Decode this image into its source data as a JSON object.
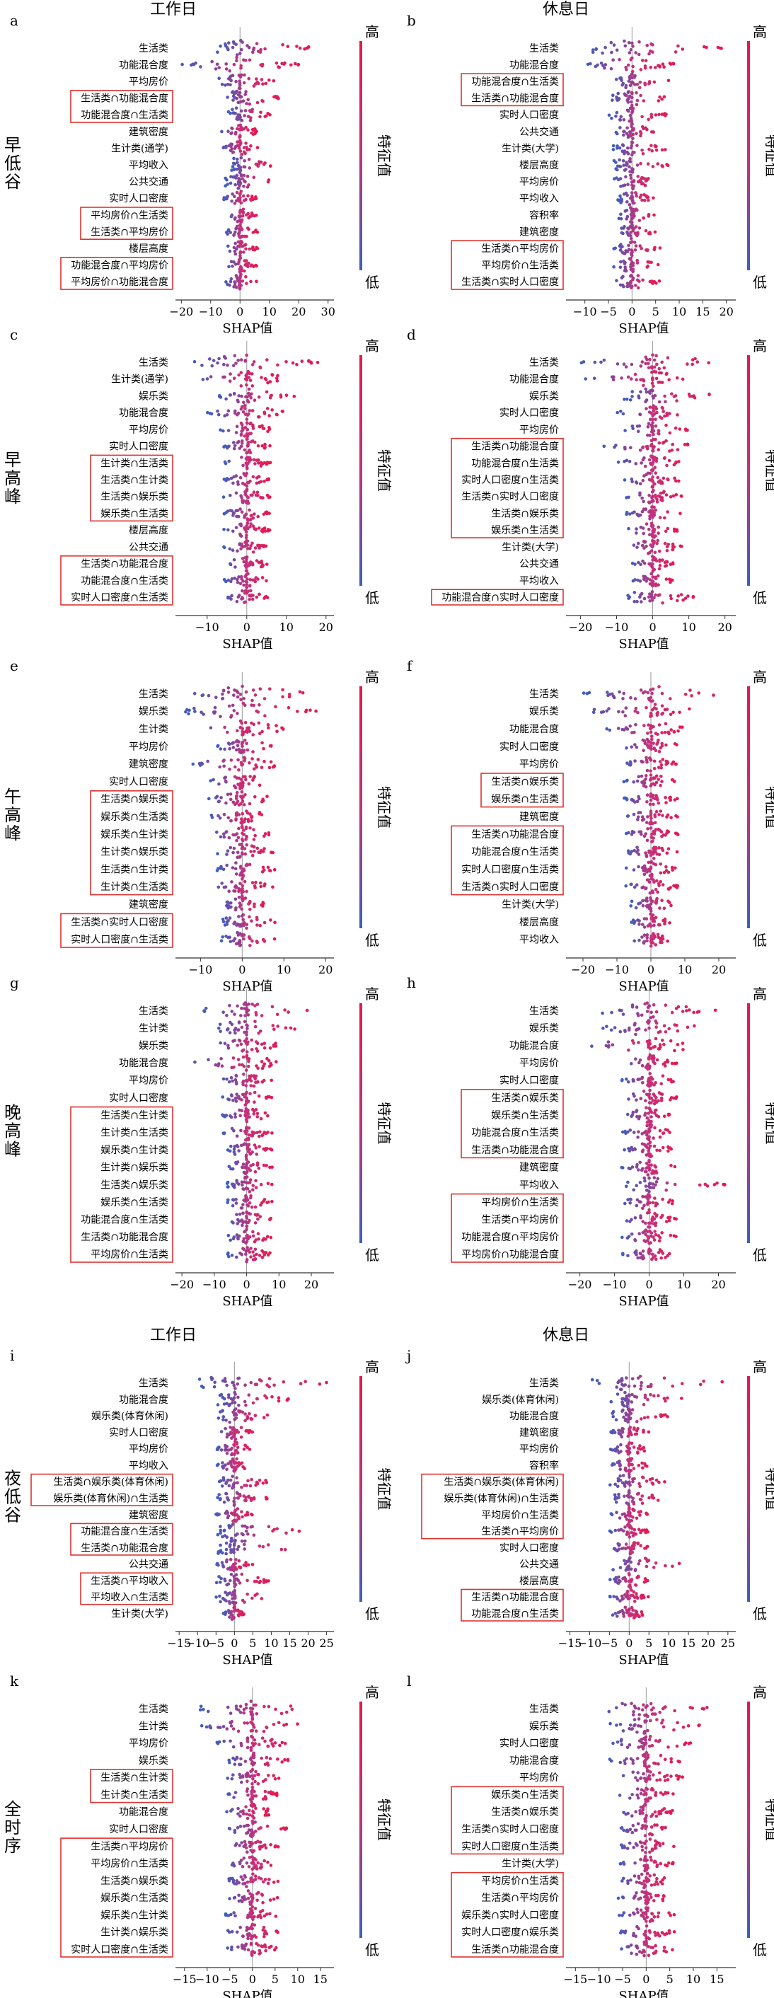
{
  "figure": {
    "headers": [
      "工作日",
      "休息日"
    ],
    "periods": [
      "早低谷",
      "早高峰",
      "午高峰",
      "晚高峰",
      "夜低谷",
      "全时序"
    ],
    "colorbar": {
      "high": "高",
      "low": "低",
      "label": "特征值",
      "colors": [
        "#3b5fc0",
        "#c6307a",
        "#e8174f"
      ]
    },
    "xlabel": "SHAP值"
  },
  "chart_data": [
    {
      "type": "scatter",
      "panel": "a",
      "period": "早低谷",
      "day": "工作日",
      "xlabel": "SHAP值",
      "xlim": [
        -22,
        32
      ],
      "xticks": [
        -20,
        -10,
        0,
        10,
        20,
        30
      ],
      "features": [
        "生活类",
        "功能混合度",
        "平均房价",
        "生活类∩功能混合度",
        "功能混合度∩生活类",
        "建筑密度",
        "生计类(通学)",
        "平均收入",
        "公共交通",
        "实时人口密度",
        "平均房价∩生活类",
        "生活类∩平均房价",
        "楼层高度",
        "功能混合度∩平均房价",
        "平均房价∩功能混合度"
      ],
      "ranges": [
        [
          -8,
          25
        ],
        [
          -20,
          20
        ],
        [
          -8,
          12
        ],
        [
          -6,
          14
        ],
        [
          -4,
          12
        ],
        [
          -7,
          6
        ],
        [
          -7,
          6
        ],
        [
          -3,
          12
        ],
        [
          -5,
          12
        ],
        [
          -6,
          6
        ],
        [
          -5,
          6
        ],
        [
          -5,
          6
        ],
        [
          -5,
          6
        ],
        [
          -5,
          6
        ],
        [
          -5,
          6
        ]
      ],
      "groups": [
        [
          3,
          4
        ],
        [
          10,
          11
        ],
        [
          13,
          14
        ]
      ]
    },
    {
      "type": "scatter",
      "panel": "b",
      "period": "早低谷",
      "day": "休息日",
      "xlabel": "SHAP值",
      "xlim": [
        -14,
        22
      ],
      "xticks": [
        -10,
        -5,
        0,
        5,
        10,
        15,
        20
      ],
      "features": [
        "生活类",
        "功能混合度",
        "功能混合度∩生活类",
        "生活类∩功能混合度",
        "实时人口密度",
        "公共交通",
        "生计类(大学)",
        "楼层高度",
        "平均房价",
        "平均收入",
        "容积率",
        "建筑密度",
        "生活类∩平均房价",
        "平均房价∩生活类",
        "生活类∩实时人口密度"
      ],
      "ranges": [
        [
          -10,
          20
        ],
        [
          -10,
          10
        ],
        [
          -4,
          8
        ],
        [
          -5,
          8
        ],
        [
          -5,
          8
        ],
        [
          -4,
          6
        ],
        [
          -4,
          8
        ],
        [
          -4,
          8
        ],
        [
          -4,
          6
        ],
        [
          -3,
          5
        ],
        [
          -3,
          5
        ],
        [
          -3,
          5
        ],
        [
          -4,
          6
        ],
        [
          -4,
          6
        ],
        [
          -4,
          6
        ]
      ],
      "groups": [
        [
          2,
          3
        ],
        [
          12,
          14
        ]
      ]
    },
    {
      "type": "scatter",
      "panel": "c",
      "period": "早高峰",
      "day": "工作日",
      "xlabel": "SHAP值",
      "xlim": [
        -18,
        22
      ],
      "xticks": [
        -10,
        0,
        10,
        20
      ],
      "features": [
        "生活类",
        "生计类(通学)",
        "娱乐类",
        "功能混合度",
        "平均房价",
        "实时人口密度",
        "生计类∩生活类",
        "生活类∩生计类",
        "生活类∩娱乐类",
        "娱乐类∩生活类",
        "楼层高度",
        "公共交通",
        "生活类∩功能混合度",
        "功能混合度∩生活类",
        "实时人口密度∩生活类"
      ],
      "ranges": [
        [
          -14,
          18
        ],
        [
          -14,
          8
        ],
        [
          -8,
          12
        ],
        [
          -10,
          10
        ],
        [
          -7,
          6
        ],
        [
          -6,
          6
        ],
        [
          -6,
          6
        ],
        [
          -6,
          6
        ],
        [
          -6,
          6
        ],
        [
          -6,
          6
        ],
        [
          -6,
          6
        ],
        [
          -6,
          6
        ],
        [
          -6,
          6
        ],
        [
          -6,
          6
        ],
        [
          -6,
          6
        ]
      ],
      "groups": [
        [
          6,
          9
        ],
        [
          12,
          14
        ]
      ]
    },
    {
      "type": "scatter",
      "panel": "d",
      "period": "早高峰",
      "day": "休息日",
      "xlabel": "SHAP值",
      "xlim": [
        -24,
        23
      ],
      "xticks": [
        -20,
        -10,
        0,
        10,
        20
      ],
      "features": [
        "生活类",
        "功能混合度",
        "娱乐类",
        "实时人口密度",
        "平均房价",
        "生活类∩功能混合度",
        "功能混合度∩生活类",
        "实时人口密度∩生活类",
        "生活类∩实时人口密度",
        "生活类∩娱乐类",
        "娱乐类∩生活类",
        "生计类(大学)",
        "公共交通",
        "平均收入",
        "功能混合度∩实时人口密度"
      ],
      "ranges": [
        [
          -20,
          20
        ],
        [
          -20,
          10
        ],
        [
          -8,
          18
        ],
        [
          -10,
          10
        ],
        [
          -8,
          10
        ],
        [
          -14,
          10
        ],
        [
          -10,
          10
        ],
        [
          -8,
          8
        ],
        [
          -8,
          8
        ],
        [
          -8,
          8
        ],
        [
          -8,
          8
        ],
        [
          -8,
          8
        ],
        [
          -6,
          6
        ],
        [
          -6,
          6
        ],
        [
          -8,
          12
        ]
      ],
      "groups": [
        [
          5,
          10
        ],
        [
          14,
          14
        ]
      ]
    },
    {
      "type": "scatter",
      "panel": "e",
      "period": "午高峰",
      "day": "工作日",
      "xlabel": "SHAP值",
      "xlim": [
        -16,
        22
      ],
      "xticks": [
        -10,
        0,
        10,
        20
      ],
      "features": [
        "生活类",
        "娱乐类",
        "生计类",
        "平均房价",
        "建筑密度",
        "实时人口密度",
        "生活类∩娱乐类",
        "娱乐类∩生活类",
        "娱乐类∩生计类",
        "生计类∩娱乐类",
        "生活类∩生计类",
        "生计类∩生活类",
        "建筑密度",
        "生活类∩实时人口密度",
        "实时人口密度∩生活类"
      ],
      "ranges": [
        [
          -14,
          18
        ],
        [
          -14,
          18
        ],
        [
          -14,
          10
        ],
        [
          -6,
          8
        ],
        [
          -12,
          8
        ],
        [
          -8,
          6
        ],
        [
          -8,
          6
        ],
        [
          -8,
          6
        ],
        [
          -8,
          8
        ],
        [
          -6,
          8
        ],
        [
          -6,
          8
        ],
        [
          -8,
          8
        ],
        [
          -5,
          6
        ],
        [
          -5,
          8
        ],
        [
          -5,
          8
        ]
      ],
      "groups": [
        [
          6,
          11
        ],
        [
          13,
          14
        ]
      ]
    },
    {
      "type": "scatter",
      "panel": "f",
      "period": "午高峰",
      "day": "休息日",
      "xlabel": "SHAP值",
      "xlim": [
        -25,
        25
      ],
      "xticks": [
        -20,
        -10,
        0,
        10,
        20
      ],
      "features": [
        "生活类",
        "娱乐类",
        "功能混合度",
        "实时人口密度",
        "平均房价",
        "生活类∩娱乐类",
        "娱乐类∩生活类",
        "建筑密度",
        "生活类∩功能混合度",
        "功能混合度∩生活类",
        "实时人口密度∩生活类",
        "生活类∩实时人口密度",
        "生计类(大学)",
        "楼层高度",
        "平均收入"
      ],
      "ranges": [
        [
          -20,
          22
        ],
        [
          -20,
          15
        ],
        [
          -14,
          10
        ],
        [
          -10,
          10
        ],
        [
          -8,
          8
        ],
        [
          -8,
          8
        ],
        [
          -8,
          8
        ],
        [
          -8,
          8
        ],
        [
          -8,
          8
        ],
        [
          -8,
          8
        ],
        [
          -8,
          8
        ],
        [
          -8,
          8
        ],
        [
          -6,
          8
        ],
        [
          -6,
          6
        ],
        [
          -6,
          6
        ]
      ],
      "groups": [
        [
          5,
          6
        ],
        [
          8,
          11
        ]
      ]
    },
    {
      "type": "scatter",
      "panel": "g",
      "period": "晚高峰",
      "day": "工作日",
      "xlabel": "SHAP值",
      "xlim": [
        -22,
        27
      ],
      "xticks": [
        -20,
        -10,
        0,
        10,
        20
      ],
      "features": [
        "生活类",
        "生计类",
        "娱乐类",
        "功能混合度",
        "平均房价",
        "实时人口密度",
        "生活类∩生计类",
        "生计类∩生活类",
        "娱乐类∩生计类",
        "生计类∩娱乐类",
        "生活类∩娱乐类",
        "娱乐类∩生活类",
        "功能混合度∩生活类",
        "生活类∩功能混合度",
        "平均房价∩生活类"
      ],
      "ranges": [
        [
          -14,
          20
        ],
        [
          -10,
          16
        ],
        [
          -12,
          12
        ],
        [
          -18,
          10
        ],
        [
          -8,
          8
        ],
        [
          -8,
          8
        ],
        [
          -8,
          8
        ],
        [
          -8,
          8
        ],
        [
          -6,
          8
        ],
        [
          -6,
          8
        ],
        [
          -6,
          8
        ],
        [
          -6,
          8
        ],
        [
          -6,
          8
        ],
        [
          -6,
          8
        ],
        [
          -6,
          8
        ]
      ],
      "groups": [
        [
          6,
          14
        ]
      ]
    },
    {
      "type": "scatter",
      "panel": "h",
      "period": "晚高峰",
      "day": "休息日",
      "xlabel": "SHAP值",
      "xlim": [
        -24,
        25
      ],
      "xticks": [
        -20,
        -10,
        0,
        10,
        20
      ],
      "features": [
        "生活类",
        "娱乐类",
        "功能混合度",
        "平均房价",
        "实时人口密度",
        "生活类∩娱乐类",
        "娱乐类∩生活类",
        "功能混合度∩生活类",
        "生活类∩功能混合度",
        "建筑密度",
        "平均收入",
        "平均房价∩生活类",
        "生活类∩平均房价",
        "功能混合度∩平均房价",
        "平均房价∩功能混合度"
      ],
      "ranges": [
        [
          -14,
          20
        ],
        [
          -14,
          18
        ],
        [
          -20,
          10
        ],
        [
          -8,
          8
        ],
        [
          -8,
          8
        ],
        [
          -8,
          8
        ],
        [
          -8,
          8
        ],
        [
          -8,
          8
        ],
        [
          -8,
          8
        ],
        [
          -8,
          8
        ],
        [
          -8,
          22
        ],
        [
          -8,
          8
        ],
        [
          -8,
          8
        ],
        [
          -8,
          8
        ],
        [
          -8,
          8
        ]
      ],
      "groups": [
        [
          5,
          8
        ],
        [
          11,
          14
        ]
      ]
    },
    {
      "type": "scatter",
      "panel": "i",
      "period": "夜低谷",
      "day": "工作日",
      "xlabel": "SHAP值",
      "xlim": [
        -16,
        27
      ],
      "xticks": [
        -15,
        -10,
        -5,
        0,
        5,
        10,
        15,
        20,
        25
      ],
      "features": [
        "生活类",
        "功能混合度",
        "娱乐类(体育休闲)",
        "实时人口密度",
        "平均房价",
        "平均收入",
        "生活类∩娱乐类(体育休闲)",
        "娱乐类(体育休闲)∩生活类",
        "建筑密度",
        "功能混合度∩生活类",
        "生活类∩功能混合度",
        "公共交通",
        "生活类∩平均收入",
        "平均收入∩生活类",
        "生计类(大学)"
      ],
      "ranges": [
        [
          -10,
          25
        ],
        [
          -5,
          15
        ],
        [
          -5,
          10
        ],
        [
          -5,
          5
        ],
        [
          -5,
          5
        ],
        [
          -5,
          5
        ],
        [
          -5,
          10
        ],
        [
          -5,
          10
        ],
        [
          -5,
          5
        ],
        [
          -5,
          20
        ],
        [
          -5,
          20
        ],
        [
          -5,
          5
        ],
        [
          -5,
          10
        ],
        [
          -5,
          10
        ],
        [
          -3,
          3
        ]
      ],
      "groups": [
        [
          6,
          7
        ],
        [
          9,
          10
        ],
        [
          12,
          13
        ]
      ]
    },
    {
      "type": "scatter",
      "panel": "j",
      "period": "夜低谷",
      "day": "休息日",
      "xlabel": "SHAP值",
      "xlim": [
        -16,
        27
      ],
      "xticks": [
        -15,
        -10,
        -5,
        0,
        5,
        10,
        15,
        20,
        25
      ],
      "features": [
        "生活类",
        "娱乐类(体育休闲)",
        "功能混合度",
        "建筑密度",
        "平均房价",
        "容积率",
        "生活类∩娱乐类(体育休闲)",
        "娱乐类(体育休闲)∩生活类",
        "平均房价∩生活类",
        "生活类∩平均房价",
        "实时人口密度",
        "公共交通",
        "楼层高度",
        "生活类∩功能混合度",
        "功能混合度∩生活类"
      ],
      "ranges": [
        [
          -10,
          25
        ],
        [
          -5,
          15
        ],
        [
          -5,
          10
        ],
        [
          -5,
          5
        ],
        [
          -5,
          5
        ],
        [
          -5,
          5
        ],
        [
          -5,
          10
        ],
        [
          -5,
          10
        ],
        [
          -5,
          5
        ],
        [
          -5,
          5
        ],
        [
          -5,
          5
        ],
        [
          -5,
          15
        ],
        [
          -5,
          5
        ],
        [
          -5,
          5
        ],
        [
          -5,
          5
        ]
      ],
      "groups": [
        [
          6,
          9
        ],
        [
          13,
          14
        ]
      ]
    },
    {
      "type": "scatter",
      "panel": "k",
      "period": "全时序",
      "day": "工作日",
      "xlabel": "SHAP值",
      "xlim": [
        -17,
        18
      ],
      "xticks": [
        -15,
        -10,
        -5,
        0,
        5,
        10,
        15
      ],
      "features": [
        "生活类",
        "生计类",
        "平均房价",
        "娱乐类",
        "生活类∩生计类",
        "生计类∩生活类",
        "功能混合度",
        "实时人口密度",
        "生活类∩平均房价",
        "平均房价∩生活类",
        "生活类∩娱乐类",
        "娱乐类∩生活类",
        "娱乐类∩生计类",
        "生计类∩娱乐类",
        "实时人口密度∩生活类"
      ],
      "ranges": [
        [
          -12,
          15
        ],
        [
          -12,
          10
        ],
        [
          -8,
          8
        ],
        [
          -6,
          8
        ],
        [
          -6,
          6
        ],
        [
          -6,
          6
        ],
        [
          -6,
          4
        ],
        [
          -6,
          8
        ],
        [
          -6,
          6
        ],
        [
          -6,
          6
        ],
        [
          -6,
          6
        ],
        [
          -6,
          6
        ],
        [
          -6,
          6
        ],
        [
          -6,
          6
        ],
        [
          -6,
          6
        ]
      ],
      "groups": [
        [
          4,
          5
        ],
        [
          8,
          14
        ]
      ]
    },
    {
      "type": "scatter",
      "panel": "l",
      "period": "全时序",
      "day": "休息日",
      "xlabel": "SHAP值",
      "xlim": [
        -17,
        19
      ],
      "xticks": [
        -15,
        -10,
        -5,
        0,
        5,
        10,
        15
      ],
      "features": [
        "生活类",
        "娱乐类",
        "实时人口密度",
        "功能混合度",
        "平均房价",
        "娱乐类∩生活类",
        "生活类∩娱乐类",
        "生活类∩实时人口密度",
        "实时人口密度∩生活类",
        "生计类(大学)",
        "平均房价∩生活类",
        "生活类∩平均房价",
        "娱乐类∩实时人口密度",
        "实时人口密度∩娱乐类",
        "生活类∩功能混合度"
      ],
      "ranges": [
        [
          -12,
          15
        ],
        [
          -8,
          12
        ],
        [
          -8,
          10
        ],
        [
          -8,
          8
        ],
        [
          -6,
          8
        ],
        [
          -6,
          6
        ],
        [
          -6,
          6
        ],
        [
          -6,
          6
        ],
        [
          -6,
          6
        ],
        [
          -6,
          6
        ],
        [
          -6,
          6
        ],
        [
          -6,
          6
        ],
        [
          -6,
          6
        ],
        [
          -6,
          6
        ],
        [
          -6,
          6
        ]
      ],
      "groups": [
        [
          5,
          8
        ],
        [
          10,
          14
        ]
      ]
    }
  ]
}
